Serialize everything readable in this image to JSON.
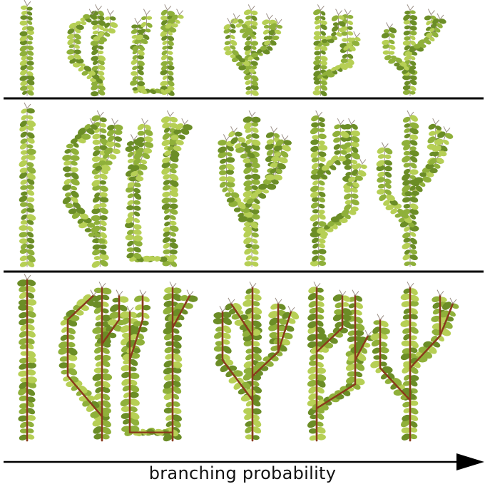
{
  "figure": {
    "axis_label": "branching probability",
    "colors": {
      "leaf_light": "#b6cf55",
      "leaf_mid": "#8fb03a",
      "leaf_dark": "#6b8d26",
      "stem_thin": "#9b8f86",
      "stem_thick": "#8a3a1c",
      "divider": "#000000"
    },
    "rows": [
      {
        "name": "row-small-plants",
        "items": 6
      },
      {
        "name": "row-medium-plants",
        "items": 6
      },
      {
        "name": "row-skeleton-plants",
        "items": 6
      }
    ]
  }
}
